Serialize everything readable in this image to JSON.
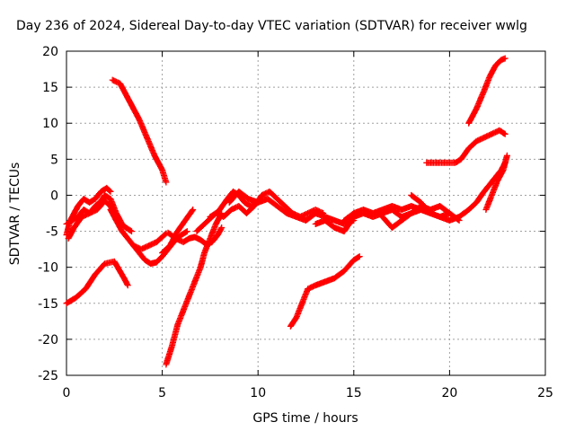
{
  "chart_data": {
    "type": "scatter",
    "title": "Day 236 of 2024, Sidereal Day-to-day VTEC variation (SDTVAR) for receiver wwlg",
    "xlabel": "GPS time / hours",
    "ylabel": "SDTVAR / TECUs",
    "xlim": [
      0,
      25
    ],
    "ylim": [
      -25,
      20
    ],
    "xticks": [
      0,
      5,
      10,
      15,
      20,
      25
    ],
    "yticks": [
      -25,
      -20,
      -15,
      -10,
      -5,
      0,
      5,
      10,
      15,
      20
    ],
    "grid": true,
    "marker": "plus",
    "series_color": "#ff0000",
    "series": [
      {
        "x": [
          0.0,
          0.5,
          1.0,
          1.5,
          2.0,
          2.5,
          3.0,
          3.2
        ],
        "y": [
          -15,
          -14.2,
          -13,
          -11,
          -9.5,
          -9.2,
          -11.5,
          -12.5
        ]
      },
      {
        "x": [
          2.4,
          2.8,
          3.1,
          3.4,
          3.8,
          4.2,
          4.6,
          5.0,
          5.2
        ],
        "y": [
          16,
          15.5,
          14,
          12.5,
          10.5,
          8,
          5.5,
          3.5,
          1.8
        ]
      },
      {
        "x": [
          0.0,
          0.2,
          0.4,
          0.6,
          0.9,
          1.2,
          1.5,
          1.8,
          2.1,
          2.3
        ],
        "y": [
          -5.5,
          -3.5,
          -2.5,
          -1.5,
          -0.5,
          -1.0,
          -0.5,
          0.5,
          1.0,
          0.5
        ]
      },
      {
        "x": [
          0.0,
          0.3,
          0.6,
          0.9,
          1.2,
          1.5,
          1.8,
          2.0,
          2.3,
          2.6,
          2.9,
          3.1,
          3.4
        ],
        "y": [
          -4,
          -3.5,
          -3,
          -2,
          -2.5,
          -1.5,
          -0.8,
          0,
          -0.5,
          -2.5,
          -4,
          -4.5,
          -5
        ]
      },
      {
        "x": [
          0.1,
          0.4,
          0.8,
          1.2,
          1.6,
          2.0,
          2.3,
          2.6
        ],
        "y": [
          -6,
          -4.5,
          -3,
          -2.5,
          -2,
          -0.8,
          -1.5,
          -3.5
        ]
      },
      {
        "x": [
          2.3,
          2.6,
          2.9,
          3.2,
          3.5,
          3.8,
          4.1,
          4.4,
          4.7,
          5.0,
          5.3,
          5.6,
          6.0,
          6.3
        ],
        "y": [
          -2,
          -3.5,
          -5,
          -6,
          -7,
          -8,
          -9,
          -9.5,
          -9.3,
          -8.5,
          -7.5,
          -6.5,
          -5.5,
          -5.0
        ]
      },
      {
        "x": [
          3.5,
          3.9,
          4.3,
          4.7,
          5.0,
          5.2
        ],
        "y": [
          -7,
          -7.5,
          -7,
          -6.5,
          -5.8,
          -5.3
        ]
      },
      {
        "x": [
          5.3,
          5.7,
          6.1,
          6.4,
          6.7,
          7.0,
          7.3,
          7.6,
          7.9,
          8.1
        ],
        "y": [
          -5.2,
          -6.0,
          -6.5,
          -6.0,
          -5.8,
          -6.2,
          -6.8,
          -6.5,
          -5.5,
          -4.5
        ]
      },
      {
        "x": [
          5.0,
          5.4,
          5.8,
          6.2,
          6.6
        ],
        "y": [
          -8,
          -7.0,
          -5.0,
          -3.5,
          -2.0
        ]
      },
      {
        "x": [
          5.2,
          5.5,
          5.8,
          6.1,
          6.4,
          6.7,
          7.0,
          7.2,
          7.5,
          7.8,
          8.0,
          8.1
        ],
        "y": [
          -23.5,
          -21,
          -18,
          -16,
          -14,
          -12,
          -10,
          -8,
          -6,
          -4,
          -3,
          -2.5
        ]
      },
      {
        "x": [
          6.8,
          7.2,
          7.6,
          8.0,
          8.4,
          8.7,
          9.0,
          9.3,
          9.6,
          10.0
        ],
        "y": [
          -5,
          -4,
          -3,
          -2,
          -0.5,
          0.5,
          0.0,
          -1.0,
          -1.5,
          -1.0
        ]
      },
      {
        "x": [
          7.5,
          7.8,
          8.2,
          8.6,
          9.0,
          9.4,
          9.8,
          10.2,
          10.6,
          11.0,
          11.4,
          11.8,
          12.2,
          12.6,
          13.0,
          13.4
        ],
        "y": [
          -3,
          -2.5,
          -3,
          -2.0,
          -1.5,
          -2.5,
          -1.5,
          0.0,
          0.5,
          -0.5,
          -1.5,
          -2.5,
          -3,
          -2.5,
          -2.0,
          -2.5
        ]
      },
      {
        "x": [
          8.5,
          9.0,
          9.5,
          10.0,
          10.5,
          11.0,
          11.5,
          12.0,
          12.5,
          13.0,
          13.5,
          14.0,
          14.5,
          15.0
        ],
        "y": [
          -1,
          0.5,
          -0.5,
          -1.0,
          -0.5,
          -1.5,
          -2.5,
          -3.0,
          -3.5,
          -2.5,
          -3.0,
          -3.5,
          -4.0,
          -3.5
        ]
      },
      {
        "x": [
          11.7,
          12.0,
          12.3,
          12.6,
          13.0,
          13.5,
          14.0,
          14.5,
          15.0,
          15.3
        ],
        "y": [
          -18.2,
          -17,
          -15,
          -13,
          -12.5,
          -12.0,
          -11.5,
          -10.5,
          -9.0,
          -8.5
        ]
      },
      {
        "x": [
          13.0,
          13.5,
          14.0,
          14.5,
          15.0,
          15.5,
          16.0,
          16.5,
          17.0,
          17.5,
          18.0,
          18.5,
          19.0
        ],
        "y": [
          -4.0,
          -3.5,
          -4.5,
          -5.0,
          -3.0,
          -2.5,
          -3.0,
          -2.5,
          -2.0,
          -3.0,
          -2.5,
          -2.0,
          -2.5
        ]
      },
      {
        "x": [
          14.5,
          15.0,
          15.5,
          16.0,
          16.5,
          17.0,
          17.5,
          18.0,
          18.5,
          19.0,
          19.5,
          20.0,
          20.5
        ],
        "y": [
          -3.5,
          -2.5,
          -2.0,
          -2.5,
          -2.0,
          -1.5,
          -2.0,
          -1.5,
          -2.0,
          -2.5,
          -3.0,
          -3.5,
          -3.0
        ]
      },
      {
        "x": [
          16.5,
          17.0,
          17.5,
          18.0,
          18.5,
          19.0,
          19.5,
          20.0,
          20.5
        ],
        "y": [
          -3.0,
          -4.5,
          -3.5,
          -2.5,
          -1.5,
          -2.0,
          -1.5,
          -2.5,
          -3.5
        ]
      },
      {
        "x": [
          18.0,
          18.5,
          19.0,
          19.5,
          20.0
        ],
        "y": [
          0.0,
          -1.0,
          -2.5,
          -3.0,
          -2.5
        ]
      },
      {
        "x": [
          18.8,
          19.3,
          19.8,
          20.3,
          20.6,
          21.0,
          21.4,
          21.8,
          22.2,
          22.6,
          22.9
        ],
        "y": [
          4.5,
          4.5,
          4.5,
          4.5,
          5.0,
          6.5,
          7.5,
          8.0,
          8.5,
          9.0,
          8.5
        ]
      },
      {
        "x": [
          21.0,
          21.4,
          21.8,
          22.1,
          22.4,
          22.7,
          22.9
        ],
        "y": [
          10,
          12,
          14.5,
          16.5,
          18.0,
          18.8,
          19.0
        ]
      },
      {
        "x": [
          20.5,
          21.0,
          21.4,
          21.8,
          22.1,
          22.4,
          22.7,
          22.9
        ],
        "y": [
          -3.0,
          -2.0,
          -1.0,
          0.5,
          1.5,
          2.5,
          3.5,
          4.5
        ]
      },
      {
        "x": [
          21.9,
          22.2,
          22.5,
          22.8,
          23.0
        ],
        "y": [
          -2.0,
          0.0,
          2.0,
          3.5,
          5.5
        ]
      }
    ]
  }
}
